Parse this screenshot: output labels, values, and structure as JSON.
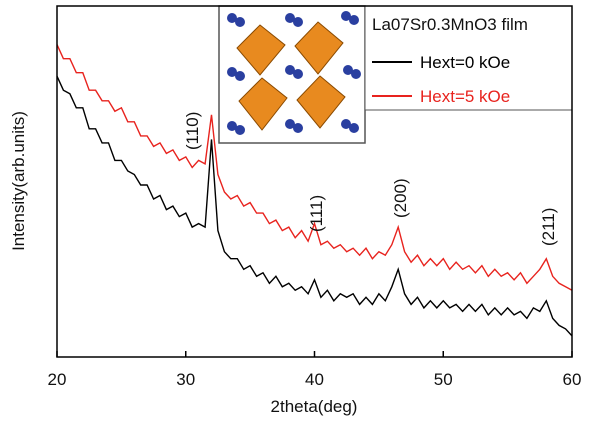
{
  "chart_data": {
    "type": "line",
    "x_label": "2theta(deg)",
    "y_label": "Intensity(arb.units)",
    "legend_title": "La07Sr0.3MnO3 film",
    "annotations": [
      "(110)",
      "(111)",
      "(200)",
      "(211)"
    ],
    "xlim": [
      20,
      60
    ],
    "xticks": [
      20,
      30,
      40,
      50,
      60
    ],
    "ylim": [
      0,
      100
    ],
    "x": [
      20,
      20.5,
      21,
      21.5,
      22,
      22.5,
      23,
      23.5,
      24,
      24.5,
      25,
      25.5,
      26,
      26.5,
      27,
      27.5,
      28,
      28.5,
      29,
      29.5,
      30,
      30.5,
      31,
      31.5,
      32,
      32.5,
      33,
      33.5,
      34,
      34.5,
      35,
      35.5,
      36,
      36.5,
      37,
      37.5,
      38,
      38.5,
      39,
      39.5,
      40,
      40.5,
      41,
      41.5,
      42,
      42.5,
      43,
      43.5,
      44,
      44.5,
      45,
      45.5,
      46,
      46.5,
      47,
      47.5,
      48,
      48.5,
      49,
      49.5,
      50,
      50.5,
      51,
      51.5,
      52,
      52.5,
      53,
      53.5,
      54,
      54.5,
      55,
      55.5,
      56,
      56.5,
      57,
      57.5,
      58,
      58.5,
      59,
      59.5,
      60
    ],
    "series": [
      {
        "name": "Hext=0 kOe",
        "color": "#000000",
        "values": [
          80,
          76,
          75,
          71,
          71,
          65,
          65,
          61,
          61,
          56,
          56,
          53,
          52,
          49,
          49,
          45,
          46,
          42,
          43,
          40,
          41,
          37,
          38,
          37,
          62,
          36,
          30,
          28,
          28,
          25,
          26,
          23,
          24,
          21,
          23,
          20,
          21,
          19,
          20,
          18,
          22,
          17,
          19,
          16,
          18,
          17,
          18,
          15,
          17,
          15,
          18,
          16,
          20,
          25,
          18,
          15,
          17,
          14,
          16,
          14,
          16,
          14,
          15,
          13,
          15,
          13,
          15,
          12,
          14,
          12,
          14,
          12,
          13,
          11,
          14,
          13,
          16,
          11,
          9,
          8,
          6
        ]
      },
      {
        "name": "Hext=5 kOe",
        "color": "#e8231e",
        "values": [
          89,
          85,
          85,
          81,
          81,
          76,
          76,
          73,
          73,
          70,
          71,
          67,
          67,
          63,
          63,
          60,
          61,
          58,
          59,
          56,
          57,
          54,
          56,
          55,
          69,
          52,
          47,
          45,
          46,
          43,
          44,
          41,
          41,
          38,
          39,
          36,
          37,
          34,
          36,
          33,
          38,
          32,
          33,
          31,
          32,
          30,
          31,
          29,
          31,
          28,
          30,
          29,
          32,
          37,
          30,
          27,
          29,
          26,
          28,
          26,
          28,
          25,
          27,
          25,
          26,
          24,
          26,
          23,
          25,
          23,
          24,
          22,
          24,
          21,
          23,
          25,
          28,
          23,
          21,
          20,
          19
        ]
      }
    ]
  }
}
